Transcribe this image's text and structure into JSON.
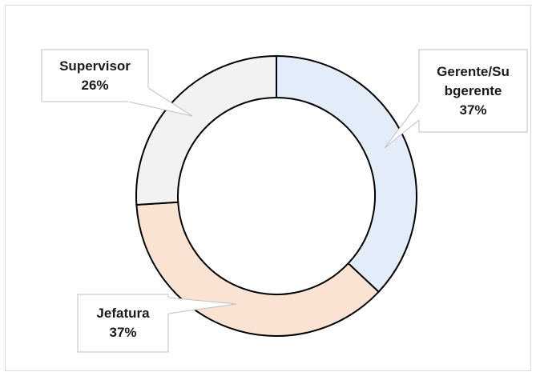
{
  "chart_data": {
    "type": "donut",
    "categories": [
      "Gerente/Subgerente",
      "Jefatura",
      "Supervisor"
    ],
    "values": [
      37,
      37,
      26
    ],
    "value_labels": [
      "37%",
      "37%",
      "26%"
    ],
    "colors": [
      "#e3edf9",
      "#fbe3d3",
      "#f2f2f2"
    ]
  }
}
